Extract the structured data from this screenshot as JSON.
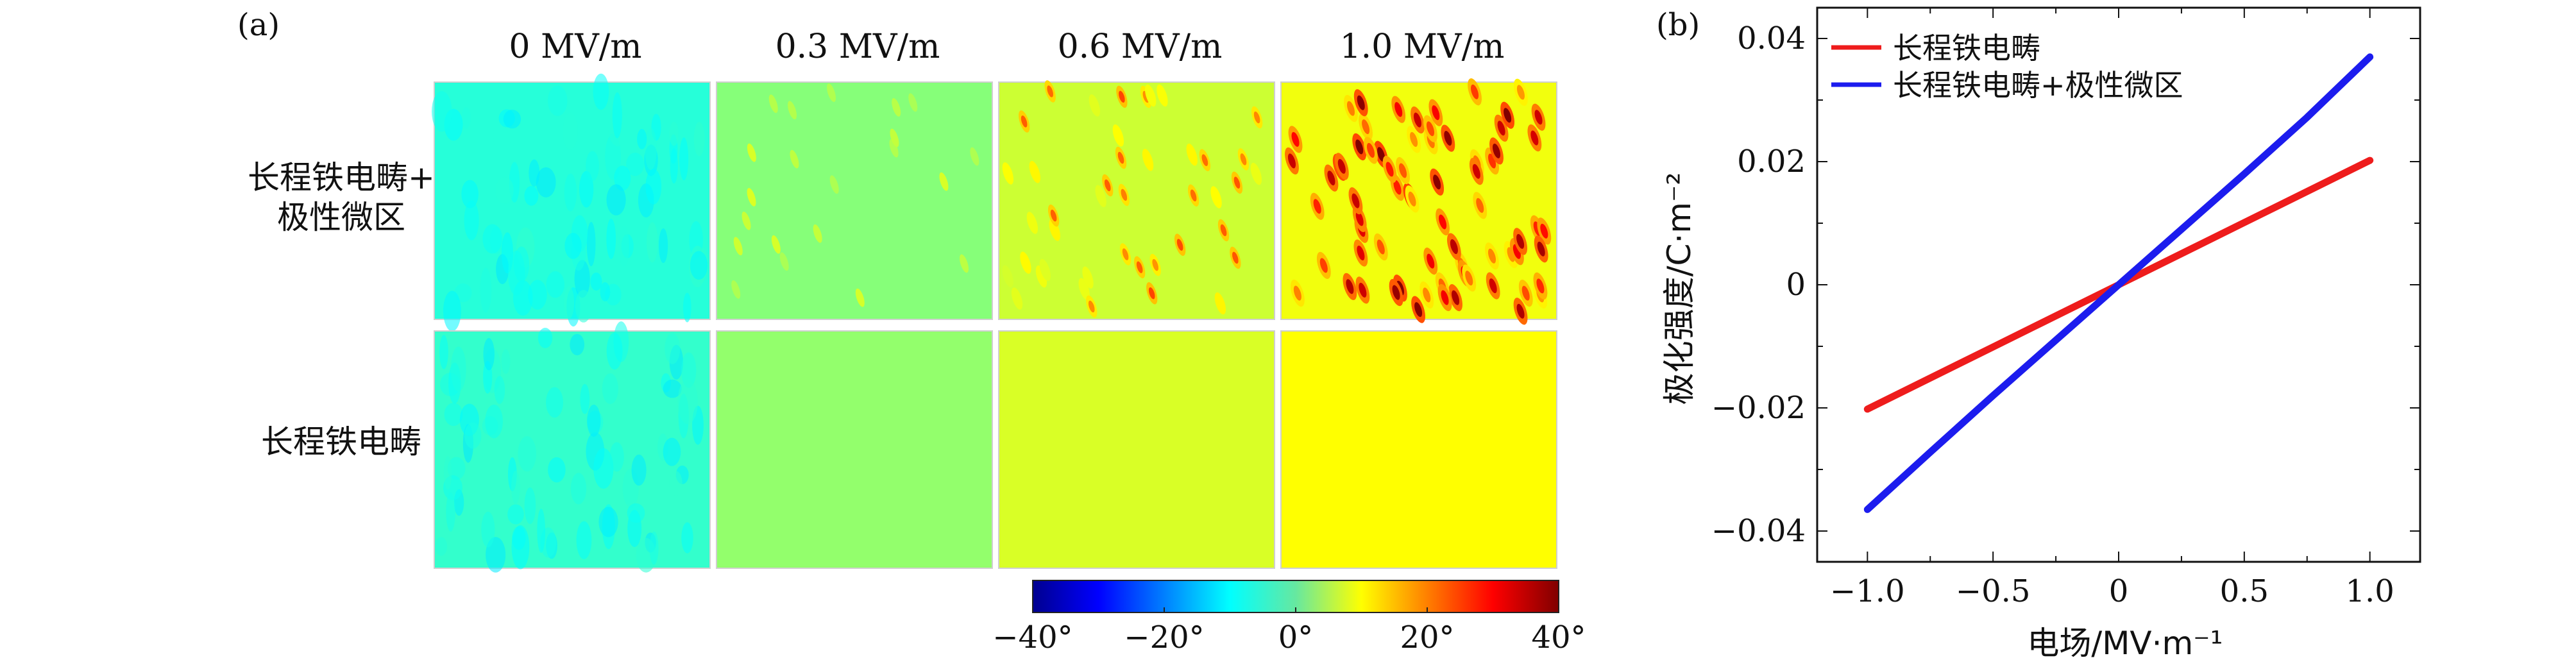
{
  "panel_a": {
    "label": "(a)",
    "columns": [
      "0 MV/m",
      "0.3 MV/m",
      "0.6 MV/m",
      "1.0 MV/m"
    ],
    "rows": [
      {
        "label_lines": [
          "长程铁电畴+",
          "极性微区"
        ],
        "fields": [
          0,
          0.3,
          0.6,
          1.0
        ],
        "polar_regions": true
      },
      {
        "label_lines": [
          "长程铁电畴"
        ],
        "fields": [
          0,
          0.3,
          0.6,
          1.0
        ],
        "polar_regions": false
      }
    ],
    "colorbar": {
      "range": [
        -40,
        40
      ],
      "tick_values": [
        -40,
        -20,
        0,
        20,
        40
      ],
      "tick_labels": [
        "−40°",
        "−20°",
        "0°",
        "20°",
        "40°"
      ],
      "colormap": "jet"
    }
  },
  "chart_data": {
    "type": "line",
    "panel_label": "(b)",
    "title": "",
    "xlabel": "电场/MV·m⁻¹",
    "ylabel": "极化强度/C·m⁻²",
    "xlim": [
      -1.2,
      1.2
    ],
    "ylim": [
      -0.045,
      0.045
    ],
    "xticks": [
      -1.0,
      -0.5,
      0,
      0.5,
      1.0
    ],
    "xtick_labels": [
      "−1.0",
      "−0.5",
      "0",
      "0.5",
      "1.0"
    ],
    "yticks": [
      -0.04,
      -0.02,
      0,
      0.02,
      0.04
    ],
    "ytick_labels": [
      "−0.04",
      "−0.02",
      "0",
      "0.02",
      "0.04"
    ],
    "legend_position": "top-left",
    "series": [
      {
        "name": "长程铁电畴",
        "color": "#ee1c1c",
        "x": [
          -1.0,
          -0.5,
          0,
          0.5,
          1.0
        ],
        "y": [
          -0.0202,
          -0.0101,
          0,
          0.0101,
          0.0202
        ]
      },
      {
        "name": "长程铁电畴+极性微区",
        "color": "#1c1cee",
        "x": [
          -1.0,
          -0.75,
          -0.5,
          -0.25,
          0,
          0.25,
          0.5,
          0.75,
          1.0
        ],
        "y": [
          -0.0365,
          -0.0272,
          -0.018,
          -0.009,
          0,
          0.009,
          0.018,
          0.0272,
          0.037
        ]
      }
    ]
  }
}
